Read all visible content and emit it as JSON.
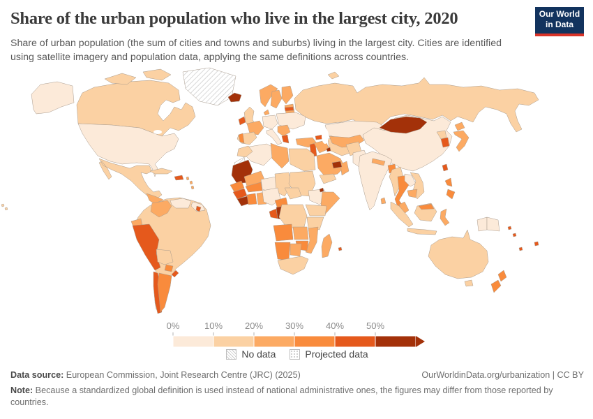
{
  "header": {
    "title": "Share of the urban population who live in the largest city, 2020",
    "subtitle": "Share of urban population (the sum of cities and towns and suburbs) living in the largest city. Cities are identified using satellite imagery and population data, applying the same definitions across countries."
  },
  "logo": {
    "line1": "Our World",
    "line2": "in Data",
    "bg_color": "#12335e",
    "accent_color": "#d93328"
  },
  "legend": {
    "tick_labels": [
      "0%",
      "10%",
      "20%",
      "30%",
      "40%",
      "50%"
    ],
    "bin_colors": [
      "#fcead9",
      "#fbd1a3",
      "#fcaa63",
      "#f98b3c",
      "#e5591c",
      "#a33109"
    ],
    "bin_ranges": [
      "0-10%",
      "10-20%",
      "20-30%",
      "30-40%",
      "40-50%",
      "50%+"
    ],
    "no_data_label": "No data",
    "projected_data_label": "Projected data"
  },
  "footer": {
    "source_label": "Data source:",
    "source_text": " European Commission, Joint Research Centre (JRC) (2025)",
    "link_text": "OurWorldinData.org/urbanization | CC BY",
    "note_label": "Note:",
    "note_text": " Because a standardized global definition is used instead of national administrative ones, the figures may differ from those reported by countries."
  },
  "map": {
    "year": "2020",
    "ocean_color": "#ffffff",
    "border_color": "#a89a8c",
    "regions": {
      "greenland": "no_data",
      "western-sahara": "no_data",
      "iceland": 5,
      "mongolia": 5,
      "mauritania": 5,
      "congo": 5,
      "uae-qatar": 5,
      "kuwait": 5,
      "djibouti": 5,
      "sierra-leone-liberia": 5,
      "peru": 4,
      "chile": 4,
      "uruguay": 4,
      "hispaniola": 4,
      "costa-rica-panama": 4,
      "ireland": 4,
      "latvia": 4,
      "greece": 4,
      "caucasus": 4,
      "levant": 4,
      "south-korea": 4,
      "taiwan": 4,
      "gabon": 4,
      "guinea": 4,
      "new-zealand": 3,
      "fiji": 4,
      "melanesia": 4,
      "mauritius": 4,
      "suriname": 4,
      "argentina": 3,
      "paraguay": 3,
      "portugal": 3,
      "thailand": 3,
      "bangladesh": 3,
      "senegal": 3,
      "cote-divoire": 3,
      "burkina-faso": 3,
      "cameroon": 3,
      "angola": 3,
      "zimbabwe": 3,
      "namibia": 3,
      "borneo-malaysia": 3,
      "philippines": 3,
      "central-america": 2,
      "colombia": 2,
      "ecuador": 2,
      "norway": 2,
      "sweden": 2,
      "finland": 2,
      "denmark": 2,
      "baltics": 2,
      "france": 2,
      "balkans": 2,
      "turkey": 2,
      "central-asia": 2,
      "iraq": 2,
      "oman": 2,
      "saudi-arabia": 2,
      "nepal": 2,
      "sri-lanka": 2,
      "japan": 2,
      "cambodia": 2,
      "malaysia": 2,
      "sulawesi": 2,
      "tunisia-libya": 2,
      "mali": 2,
      "somalia": 2,
      "ghana": 2,
      "zambia": 2,
      "mozambique": 2,
      "botswana": 2,
      "madagascar": 2,
      "lesser-antilles": 2,
      "canada": 1,
      "arctic-islands": 1,
      "mexico": 1,
      "cuba": 1,
      "brazil": 1,
      "bolivia": 1,
      "uk": 1,
      "iberia": 1,
      "russia": 1,
      "svalbard": 1,
      "iran": 1,
      "yemen": 1,
      "afghanistan": 1,
      "north-korea": 1,
      "myanmar": 1,
      "vietnam": 1,
      "sumatra": 1,
      "java": 1,
      "borneo": 1,
      "australia": 1,
      "tasmania": 1,
      "morocco": 1,
      "egypt": 1,
      "chad": 1,
      "sudan": 1,
      "central-african-republic": 1,
      "drc": 1,
      "uganda-kenya": 1,
      "tanzania": 1,
      "south-africa": 1,
      "hawaii": 1,
      "alaska": 0,
      "usa": 0,
      "venezuela": 0,
      "guianas": 0,
      "germany-central": 0,
      "poland-ukraine": 0,
      "italy": 0,
      "kazakhstan": 0,
      "pakistan": 0,
      "india": 0,
      "china": 0,
      "laos": 0,
      "new-guinea-west": 0,
      "papua-new-guinea": 0,
      "algeria": 0,
      "niger": 0,
      "nigeria": 0,
      "ethiopia": 0
    }
  }
}
